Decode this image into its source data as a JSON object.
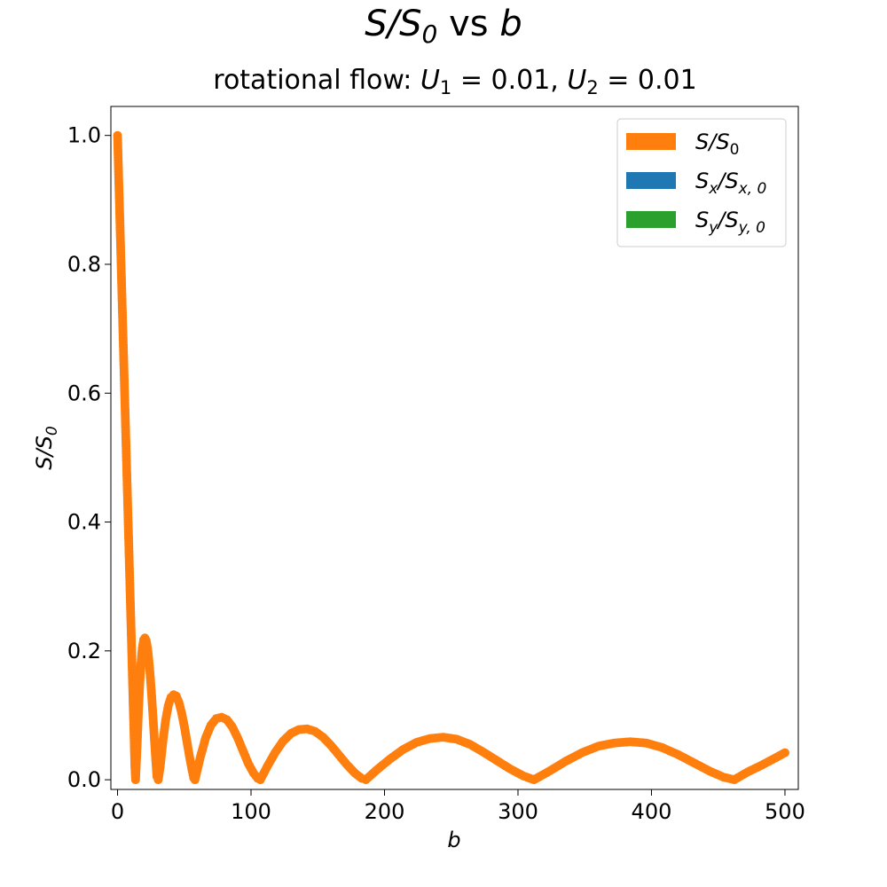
{
  "chart_data": {
    "type": "scatter",
    "title": "S/S₀ vs b",
    "title_parts": {
      "a": "S/S",
      "a_sub": "0",
      "b": " vs ",
      "c": "b"
    },
    "subtitle_parts": {
      "prefix": "rotational flow: ",
      "u1": "U",
      "u1_sub": "1",
      "u1_val": " = 0.01, ",
      "u2": "U",
      "u2_sub": "2",
      "u2_val": " = 0.01"
    },
    "xlabel": "b",
    "ylabel": "S/S₀",
    "ylabel_parts": {
      "a": "S/S",
      "a_sub": "0"
    },
    "xlim": [
      -5,
      510
    ],
    "ylim": [
      -0.015,
      1.045
    ],
    "xticks": [
      0,
      100,
      200,
      300,
      400,
      500
    ],
    "yticks": [
      0.0,
      0.2,
      0.4,
      0.6,
      0.8,
      1.0
    ],
    "xtick_labels": [
      "0",
      "100",
      "200",
      "300",
      "400",
      "500"
    ],
    "ytick_labels": [
      "0.0",
      "0.2",
      "0.4",
      "0.6",
      "0.8",
      "1.0"
    ],
    "legend_position": "top-right",
    "grid": false,
    "series": [
      {
        "name": "S/S₀",
        "legend": {
          "a": "S/S",
          "a_sub": "0"
        },
        "color": "#ff7f0e",
        "points": [
          [
            0.0,
            1.0
          ],
          [
            0.25,
            0.981
          ],
          [
            0.5,
            0.962
          ],
          [
            0.75,
            0.943
          ],
          [
            1.0,
            0.924
          ],
          [
            1.25,
            0.906
          ],
          [
            1.5,
            0.887
          ],
          [
            1.75,
            0.868
          ],
          [
            2.0,
            0.849
          ],
          [
            2.25,
            0.83
          ],
          [
            2.5,
            0.811
          ],
          [
            2.75,
            0.792
          ],
          [
            3.0,
            0.774
          ],
          [
            3.25,
            0.755
          ],
          [
            3.5,
            0.736
          ],
          [
            3.75,
            0.717
          ],
          [
            4.0,
            0.698
          ],
          [
            4.25,
            0.679
          ],
          [
            4.5,
            0.66
          ],
          [
            4.75,
            0.642
          ],
          [
            5.0,
            0.623
          ],
          [
            5.25,
            0.604
          ],
          [
            5.5,
            0.585
          ],
          [
            5.75,
            0.566
          ],
          [
            6.0,
            0.547
          ],
          [
            6.25,
            0.528
          ],
          [
            6.5,
            0.51
          ],
          [
            6.75,
            0.491
          ],
          [
            7.0,
            0.472
          ],
          [
            7.25,
            0.453
          ],
          [
            7.5,
            0.434
          ],
          [
            7.75,
            0.415
          ],
          [
            8.0,
            0.396
          ],
          [
            8.25,
            0.378
          ],
          [
            8.5,
            0.359
          ],
          [
            8.75,
            0.34
          ],
          [
            9.0,
            0.321
          ],
          [
            9.25,
            0.302
          ],
          [
            9.5,
            0.283
          ],
          [
            9.75,
            0.264
          ],
          [
            10.0,
            0.246
          ],
          [
            10.5,
            0.208
          ],
          [
            11.0,
            0.17
          ],
          [
            11.5,
            0.132
          ],
          [
            12.0,
            0.094
          ],
          [
            12.5,
            0.057
          ],
          [
            13.0,
            0.019
          ],
          [
            13.5,
            0.0
          ],
          [
            14.5,
            0.045
          ],
          [
            15.5,
            0.097
          ],
          [
            16.5,
            0.143
          ],
          [
            17.5,
            0.179
          ],
          [
            18.5,
            0.204
          ],
          [
            19.5,
            0.217
          ],
          [
            20.5,
            0.22
          ],
          [
            21.5,
            0.216
          ],
          [
            22.5,
            0.204
          ],
          [
            23.5,
            0.185
          ],
          [
            24.5,
            0.161
          ],
          [
            25.5,
            0.132
          ],
          [
            26.5,
            0.1
          ],
          [
            27.5,
            0.067
          ],
          [
            28.5,
            0.034
          ],
          [
            29.5,
            0.005
          ],
          [
            30.5,
            0.0
          ],
          [
            32.0,
            0.021
          ],
          [
            34.0,
            0.06
          ],
          [
            36.0,
            0.092
          ],
          [
            38.0,
            0.115
          ],
          [
            40.0,
            0.128
          ],
          [
            42.0,
            0.132
          ],
          [
            44.0,
            0.13
          ],
          [
            46.0,
            0.12
          ],
          [
            48.0,
            0.104
          ],
          [
            50.0,
            0.083
          ],
          [
            52.0,
            0.059
          ],
          [
            54.0,
            0.035
          ],
          [
            56.0,
            0.013
          ],
          [
            57.0,
            0.003
          ],
          [
            58.0,
            0.0
          ],
          [
            62.0,
            0.035
          ],
          [
            66.0,
            0.065
          ],
          [
            70.0,
            0.085
          ],
          [
            74.0,
            0.095
          ],
          [
            78.0,
            0.097
          ],
          [
            82.0,
            0.093
          ],
          [
            86.0,
            0.082
          ],
          [
            90.0,
            0.065
          ],
          [
            94.0,
            0.045
          ],
          [
            98.0,
            0.025
          ],
          [
            102.0,
            0.01
          ],
          [
            105.0,
            0.002
          ],
          [
            107.0,
            0.0
          ],
          [
            112.0,
            0.02
          ],
          [
            118.0,
            0.042
          ],
          [
            124.0,
            0.06
          ],
          [
            130.0,
            0.072
          ],
          [
            136.0,
            0.078
          ],
          [
            142.0,
            0.079
          ],
          [
            148.0,
            0.075
          ],
          [
            154.0,
            0.066
          ],
          [
            160.0,
            0.053
          ],
          [
            166.0,
            0.038
          ],
          [
            172.0,
            0.023
          ],
          [
            178.0,
            0.01
          ],
          [
            183.0,
            0.002
          ],
          [
            186.0,
            0.0
          ],
          [
            194.0,
            0.015
          ],
          [
            204.0,
            0.032
          ],
          [
            214.0,
            0.047
          ],
          [
            224.0,
            0.058
          ],
          [
            234.0,
            0.064
          ],
          [
            244.0,
            0.066
          ],
          [
            254.0,
            0.063
          ],
          [
            264.0,
            0.055
          ],
          [
            274.0,
            0.043
          ],
          [
            284.0,
            0.03
          ],
          [
            294.0,
            0.017
          ],
          [
            304.0,
            0.006
          ],
          [
            312.0,
            0.0
          ],
          [
            324.0,
            0.014
          ],
          [
            336.0,
            0.029
          ],
          [
            348.0,
            0.042
          ],
          [
            360.0,
            0.052
          ],
          [
            372.0,
            0.057
          ],
          [
            384.0,
            0.059
          ],
          [
            396.0,
            0.057
          ],
          [
            408.0,
            0.05
          ],
          [
            420.0,
            0.039
          ],
          [
            432.0,
            0.026
          ],
          [
            444.0,
            0.013
          ],
          [
            454.0,
            0.004
          ],
          [
            462.0,
            0.0
          ],
          [
            472.0,
            0.012
          ],
          [
            482.0,
            0.022
          ],
          [
            492.0,
            0.033
          ],
          [
            500.0,
            0.042
          ]
        ]
      },
      {
        "name": "Sₓ/Sₓ,₀",
        "legend": {
          "a": "S",
          "a_sub": "x",
          "b": "/S",
          "b_sub": "x, 0"
        },
        "color": "#1f77b4",
        "points": []
      },
      {
        "name": "Sᵧ/Sᵧ,₀",
        "legend": {
          "a": "S",
          "a_sub": "y",
          "b": "/S",
          "b_sub": "y, 0"
        },
        "color": "#2ca02c",
        "points": []
      }
    ]
  }
}
